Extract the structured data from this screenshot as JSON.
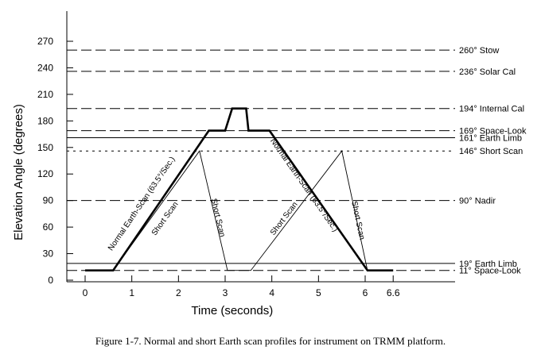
{
  "caption": "Figure 1-7.  Normal and short Earth scan profiles for instrument on TRMM platform.",
  "chart_data": {
    "type": "line",
    "title": "",
    "xlabel": "Time (seconds)",
    "ylabel": "Elevation Angle (degrees)",
    "xlim": [
      0,
      6.6
    ],
    "ylim": [
      0,
      270
    ],
    "x_ticks": [
      {
        "value": 0,
        "label": "0"
      },
      {
        "value": 1,
        "label": "1"
      },
      {
        "value": 2,
        "label": "2"
      },
      {
        "value": 3,
        "label": "3"
      },
      {
        "value": 4,
        "label": "4"
      },
      {
        "value": 5,
        "label": "5"
      },
      {
        "value": 6,
        "label": "6"
      },
      {
        "value": 6.6,
        "label": "6.6"
      }
    ],
    "y_ticks": [
      {
        "value": 0,
        "label": "0"
      },
      {
        "value": 30,
        "label": "30"
      },
      {
        "value": 60,
        "label": "60"
      },
      {
        "value": 90,
        "label": "90"
      },
      {
        "value": 120,
        "label": "120"
      },
      {
        "value": 150,
        "label": "150"
      },
      {
        "value": 180,
        "label": "180"
      },
      {
        "value": 210,
        "label": "210"
      },
      {
        "value": 240,
        "label": "240"
      },
      {
        "value": 270,
        "label": "270"
      }
    ],
    "reference_lines": [
      {
        "value": 260,
        "label": "260° Stow",
        "style": "dashed"
      },
      {
        "value": 236,
        "label": "236° Solar Cal",
        "style": "dashed"
      },
      {
        "value": 194,
        "label": "194° Internal Cal",
        "style": "dashed"
      },
      {
        "value": 169,
        "label": "169° Space-Look",
        "style": "dashed"
      },
      {
        "value": 161,
        "label": "161° Earth Limb",
        "style": "solid"
      },
      {
        "value": 146,
        "label": "146° Short Scan",
        "style": "dotted"
      },
      {
        "value": 90,
        "label": "90° Nadir",
        "style": "dashed"
      },
      {
        "value": 19,
        "label": "19° Earth Limb",
        "style": "solid"
      },
      {
        "value": 11,
        "label": "11° Space-Look",
        "style": "dashed"
      }
    ],
    "series": [
      {
        "style": "thick",
        "x": [
          0,
          0.6,
          2.65,
          3.0,
          3.15,
          3.45,
          3.5,
          3.95,
          6.05,
          6.6
        ],
        "y": [
          11,
          11,
          169,
          169,
          194,
          194,
          169,
          169,
          11,
          11
        ]
      },
      {
        "style": "thin",
        "x": [
          0.6,
          2.45,
          3.05,
          3.55,
          5.5,
          6.05
        ],
        "y": [
          11,
          146,
          11,
          11,
          146,
          11
        ]
      }
    ],
    "annotations": [
      {
        "text": "Normal Earth-Scan (63.5°/Sec.)",
        "x": 1.25,
        "y": 85
      },
      {
        "text": "Short Scan",
        "x": 1.75,
        "y": 68
      },
      {
        "text": "Short Scan",
        "x": 2.8,
        "y": 70
      },
      {
        "text": "Short Scan",
        "x": 4.3,
        "y": 68
      },
      {
        "text": "Normal Earth-Scan (63.5°/Sec.)",
        "x": 4.65,
        "y": 106
      },
      {
        "text": "Short Scan",
        "x": 5.8,
        "y": 67
      }
    ]
  }
}
